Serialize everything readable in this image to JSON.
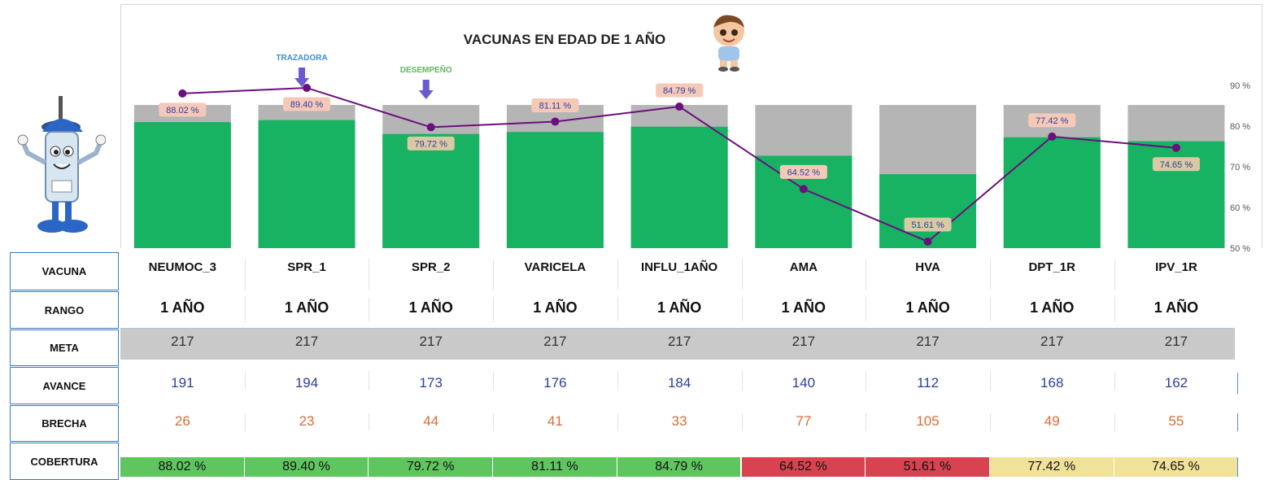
{
  "chart_data": {
    "type": "bar+line",
    "title": "VACUNAS EN EDAD DE 1 AÑO",
    "categories": [
      "NEUMOC_3",
      "SPR_1",
      "SPR_2",
      "VARICELA",
      "INFLU_1AÑO",
      "AMA",
      "HVA",
      "DPT_1R",
      "IPV_1R"
    ],
    "series": [
      {
        "type": "bar",
        "values": [
          191,
          194,
          173,
          176,
          184,
          140,
          112,
          168,
          162
        ]
      },
      {
        "type": "bar-background",
        "values": [
          217,
          217,
          217,
          217,
          217,
          217,
          217,
          217,
          217
        ]
      },
      {
        "type": "line",
        "values": [
          88.02,
          89.4,
          79.72,
          81.11,
          84.79,
          64.52,
          51.61,
          77.42,
          74.65
        ],
        "labels": [
          "88.02 %",
          "89.40 %",
          "79.72 %",
          "81.11 %",
          "84.79 %",
          "64.52 %",
          "51.61 %",
          "77.42 %",
          "74.65 %"
        ]
      }
    ],
    "y2_ticks": [
      "50 %",
      "60 %",
      "70 %",
      "80 %",
      "90 %"
    ],
    "y2lim": [
      50,
      90
    ],
    "annotations": [
      {
        "text": "TRAZADORA",
        "category": "SPR_1",
        "color": "#3a8fd8"
      },
      {
        "text": "DESEMPEÑO",
        "category": "SPR_2",
        "color": "#5fb85a"
      }
    ],
    "colors": {
      "bar": "#18b263",
      "bar_background": "#b5b5b5",
      "line": "#6b0f7d",
      "label_bg": "#f5c9b8",
      "label_bg_alt": "#d9c9a4"
    }
  },
  "table": {
    "row_labels": [
      "VACUNA",
      "RANGO",
      "META",
      "AVANCE",
      "BRECHA",
      "COBERTURA"
    ],
    "rango": [
      "1 AÑO",
      "1 AÑO",
      "1 AÑO",
      "1 AÑO",
      "1 AÑO",
      "1 AÑO",
      "1 AÑO",
      "1 AÑO",
      "1 AÑO"
    ],
    "meta": [
      "217",
      "217",
      "217",
      "217",
      "217",
      "217",
      "217",
      "217",
      "217"
    ],
    "avance": [
      "191",
      "194",
      "173",
      "176",
      "184",
      "140",
      "112",
      "168",
      "162"
    ],
    "brecha": [
      "26",
      "23",
      "44",
      "41",
      "33",
      "77",
      "105",
      "49",
      "55"
    ],
    "cobertura": [
      "88.02 %",
      "89.40 %",
      "79.72 %",
      "81.11 %",
      "84.79 %",
      "64.52 %",
      "51.61 %",
      "77.42 %",
      "74.65 %"
    ],
    "cobertura_colors": [
      "#5fc65f",
      "#5fc65f",
      "#5fc65f",
      "#5fc65f",
      "#5fc65f",
      "#d9434f",
      "#d9434f",
      "#f1e29a",
      "#f1e29a"
    ],
    "meta_bg": "#c9c9c9"
  }
}
